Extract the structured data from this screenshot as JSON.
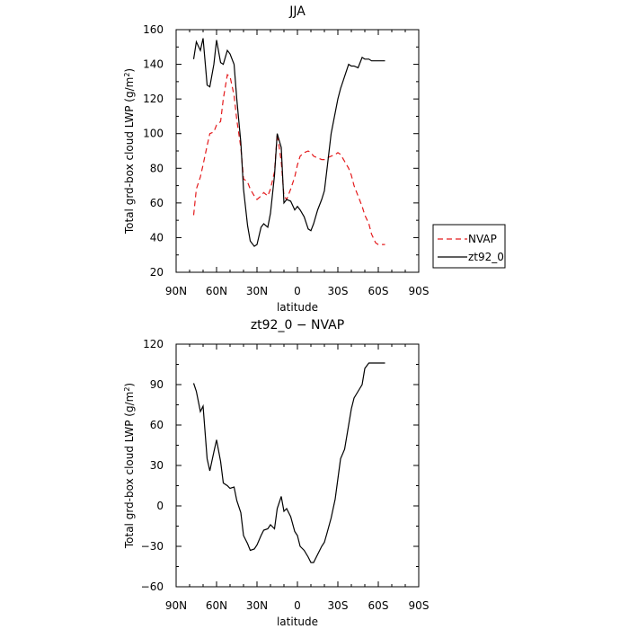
{
  "chart_data": [
    {
      "type": "line",
      "title": "JJA",
      "xlabel": "latitude",
      "ylabel": "Total grd-box cloud LWP (g/m",
      "ylabel_sup": "2",
      "ylabel_end": ")",
      "xlim": [
        90,
        -90
      ],
      "ylim": [
        20,
        160
      ],
      "xticks": [
        {
          "v": 90,
          "label": "90N"
        },
        {
          "v": 60,
          "label": "60N"
        },
        {
          "v": 30,
          "label": "30N"
        },
        {
          "v": 0,
          "label": "0"
        },
        {
          "v": -30,
          "label": "30S"
        },
        {
          "v": -60,
          "label": "60S"
        },
        {
          "v": -90,
          "label": "90S"
        }
      ],
      "yticks": [
        20,
        40,
        60,
        80,
        100,
        120,
        140,
        160
      ],
      "legend": {
        "placement": "right-outside"
      },
      "series": [
        {
          "name": "NVAP",
          "color": "#e41a1c",
          "dash": "dashed",
          "x": [
            77,
            75,
            72,
            70,
            67,
            65,
            62,
            60,
            57,
            55,
            52,
            50,
            47,
            45,
            42,
            40,
            37,
            35,
            32,
            30,
            27,
            25,
            22,
            20,
            17,
            15,
            12,
            10,
            8,
            5,
            2,
            0,
            -2,
            -5,
            -8,
            -10,
            -12,
            -15,
            -18,
            -20,
            -22,
            -25,
            -28,
            -30,
            -32,
            -35,
            -38,
            -40,
            -42,
            -45,
            -48,
            -50,
            -53,
            -55,
            -58,
            -60,
            -62,
            -65
          ],
          "y": [
            53,
            68,
            75,
            82,
            93,
            100,
            101,
            105,
            107,
            120,
            134,
            133,
            122,
            108,
            92,
            74,
            72,
            68,
            64,
            62,
            64,
            66,
            64,
            68,
            78,
            100,
            84,
            64,
            62,
            68,
            75,
            82,
            87,
            89,
            90,
            89,
            87,
            86,
            85,
            85,
            86,
            87,
            88,
            89,
            88,
            84,
            80,
            76,
            70,
            64,
            58,
            53,
            48,
            42,
            37,
            36,
            36,
            36
          ]
        },
        {
          "name": "zt92_0",
          "color": "#000000",
          "dash": "solid",
          "x": [
            77,
            75,
            72,
            70,
            67,
            65,
            62,
            60,
            57,
            55,
            52,
            50,
            47,
            45,
            42,
            40,
            37,
            35,
            32,
            30,
            27,
            25,
            22,
            20,
            17,
            15,
            12,
            10,
            8,
            5,
            2,
            0,
            -2,
            -5,
            -8,
            -10,
            -12,
            -15,
            -18,
            -20,
            -22,
            -25,
            -28,
            -30,
            -32,
            -35,
            -38,
            -40,
            -42,
            -45,
            -48,
            -50,
            -53,
            -55,
            -58,
            -60,
            -62,
            -65
          ],
          "y": [
            143,
            153,
            148,
            155,
            128,
            127,
            140,
            154,
            141,
            140,
            148,
            146,
            140,
            120,
            95,
            68,
            47,
            38,
            35,
            36,
            46,
            48,
            46,
            54,
            76,
            100,
            92,
            60,
            62,
            61,
            56,
            58,
            56,
            52,
            45,
            44,
            48,
            56,
            62,
            67,
            80,
            100,
            112,
            120,
            126,
            133,
            140,
            139,
            139,
            138,
            144,
            143,
            143,
            142,
            142,
            142,
            142,
            142
          ]
        }
      ]
    },
    {
      "type": "line",
      "title": "zt92_0 − NVAP",
      "xlabel": "latitude",
      "ylabel": "Total grd-box cloud LWP (g/m",
      "ylabel_sup": "2",
      "ylabel_end": ")",
      "xlim": [
        90,
        -90
      ],
      "ylim": [
        -60,
        120
      ],
      "xticks": [
        {
          "v": 90,
          "label": "90N"
        },
        {
          "v": 60,
          "label": "60N"
        },
        {
          "v": 30,
          "label": "30N"
        },
        {
          "v": 0,
          "label": "0"
        },
        {
          "v": -30,
          "label": "30S"
        },
        {
          "v": -60,
          "label": "60S"
        },
        {
          "v": -90,
          "label": "90S"
        }
      ],
      "yticks": [
        -60,
        -30,
        0,
        30,
        60,
        90,
        120
      ],
      "series": [
        {
          "color": "#000000",
          "dash": "solid",
          "x": [
            77,
            75,
            72,
            70,
            67,
            65,
            62,
            60,
            57,
            55,
            52,
            50,
            47,
            45,
            42,
            40,
            37,
            35,
            32,
            30,
            27,
            25,
            22,
            20,
            17,
            15,
            12,
            10,
            8,
            5,
            2,
            0,
            -2,
            -5,
            -8,
            -10,
            -12,
            -15,
            -18,
            -20,
            -22,
            -25,
            -28,
            -30,
            -32,
            -35,
            -38,
            -40,
            -42,
            -45,
            -48,
            -50,
            -53,
            -55,
            -58,
            -60,
            -62,
            -65
          ],
          "y": [
            91,
            85,
            70,
            74,
            35,
            26,
            40,
            49,
            33,
            17,
            15,
            13,
            14,
            4,
            -5,
            -22,
            -28,
            -33,
            -32,
            -29,
            -22,
            -18,
            -17,
            -14,
            -17,
            -2,
            7,
            -4,
            -2,
            -8,
            -19,
            -22,
            -30,
            -33,
            -38,
            -42,
            -42,
            -36,
            -30,
            -27,
            -20,
            -9,
            5,
            20,
            35,
            42,
            60,
            72,
            80,
            85,
            90,
            102,
            106,
            106,
            106,
            106,
            106,
            106
          ]
        }
      ]
    }
  ]
}
